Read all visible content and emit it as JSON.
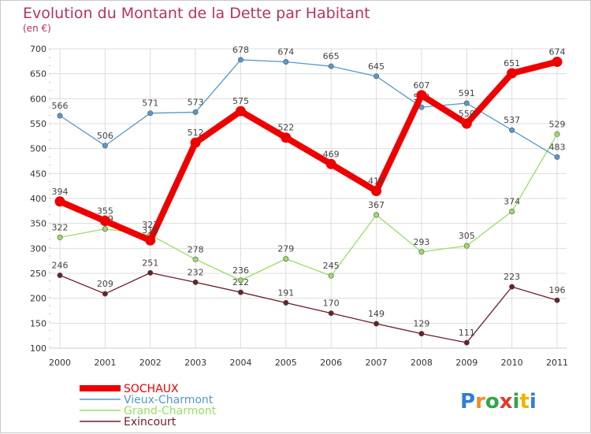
{
  "chart_data": {
    "type": "line",
    "title": "Evolution du Montant de la Dette par Habitant",
    "subtitle": "(en €)",
    "xlabel": "",
    "ylabel": "",
    "ylim": [
      100,
      700
    ],
    "yticks": [
      100,
      150,
      200,
      250,
      300,
      350,
      400,
      450,
      500,
      550,
      600,
      650,
      700
    ],
    "x": [
      "2000",
      "2001",
      "2002",
      "2003",
      "2004",
      "2005",
      "2006",
      "2007",
      "2008",
      "2009",
      "2010",
      "2011"
    ],
    "grid": true,
    "legend": "bottom-left",
    "series": [
      {
        "name": "Exincourt",
        "color": "#6b1f2a",
        "style": "thin",
        "values": [
          246,
          209,
          251,
          232,
          212,
          191,
          170,
          149,
          129,
          111,
          223,
          196
        ]
      },
      {
        "name": "Grand-Charmont",
        "color": "#99dd66",
        "style": "thin",
        "values": [
          322,
          339,
          327,
          278,
          236,
          279,
          245,
          367,
          293,
          305,
          374,
          529
        ]
      },
      {
        "name": "Vieux-Charmont",
        "color": "#5599cc",
        "style": "thin",
        "values": [
          566,
          506,
          571,
          573,
          678,
          674,
          665,
          645,
          583,
          591,
          537,
          483
        ]
      },
      {
        "name": "SOCHAUX",
        "color": "#ee0000",
        "style": "thick",
        "values": [
          394,
          355,
          316,
          512,
          575,
          522,
          469,
          415,
          607,
          550,
          651,
          674
        ]
      }
    ],
    "legend_order": [
      "SOCHAUX",
      "Vieux-Charmont",
      "Grand-Charmont",
      "Exincourt"
    ],
    "labels": {
      "SOCHAUX": [
        "394",
        "355",
        "316",
        "512",
        "575",
        "522",
        "469",
        "415",
        "607",
        "550",
        "651",
        "674"
      ],
      "Vieux-Charmont": [
        "566",
        "506",
        "571",
        "573",
        "678",
        "674",
        "665",
        "645",
        "583",
        "591",
        "537",
        "483"
      ],
      "Grand-Charmont": [
        "322",
        "339",
        "327",
        "278",
        "236",
        "279",
        "245",
        "367",
        "293",
        "305",
        "374",
        "529"
      ],
      "Exincourt": [
        "246",
        "209",
        "251",
        "232",
        "212",
        "191",
        "170",
        "149",
        "129",
        "111",
        "223",
        "196"
      ]
    }
  },
  "branding": {
    "logo_text": "Proxiti",
    "letters": [
      "P",
      "r",
      "o",
      "x",
      "i",
      "t",
      "i"
    ],
    "letter_colors": [
      "#2f7fd6",
      "#f28c1e",
      "#2aa84a",
      "#e23a2e",
      "#2aa84a",
      "#f0b400",
      "#2f7fd6"
    ]
  }
}
